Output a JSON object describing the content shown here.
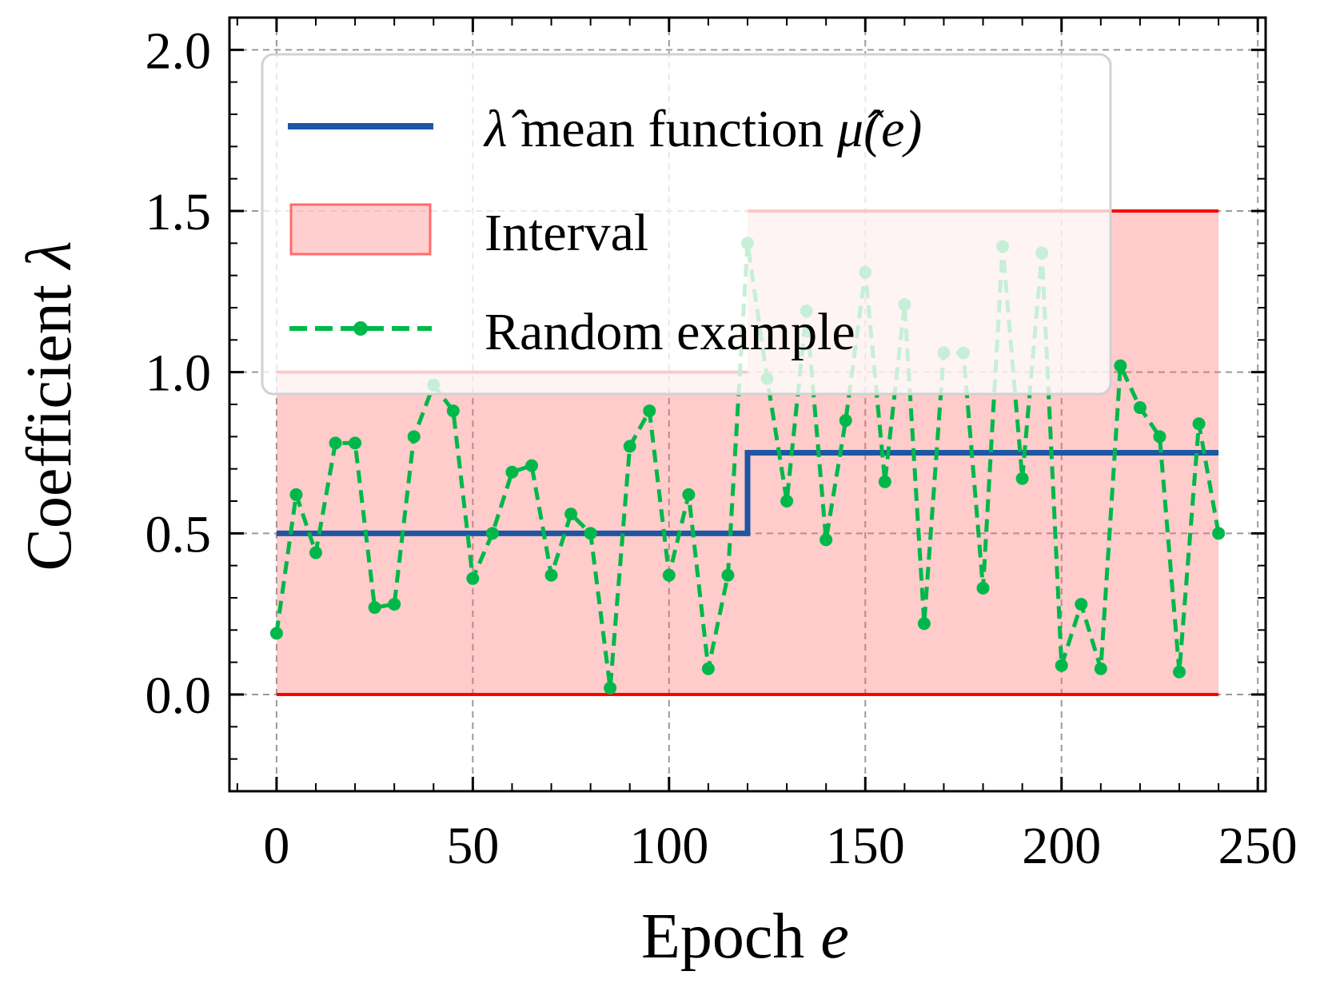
{
  "chart_data": {
    "type": "line",
    "xlabel": "Epoch",
    "xlabel_var": "e",
    "ylabel": "Coefficient",
    "ylabel_var": "λ",
    "xlim": [
      -12,
      252
    ],
    "ylim": [
      -0.3,
      2.1
    ],
    "xticks": [
      0,
      50,
      100,
      150,
      200,
      250
    ],
    "xtick_labels": [
      "0",
      "50",
      "100",
      "150",
      "200",
      "250"
    ],
    "yticks": [
      0.0,
      0.5,
      1.0,
      1.5,
      2.0
    ],
    "ytick_labels": [
      "0.0",
      "0.5",
      "1.0",
      "1.5",
      "2.0"
    ],
    "grid": true,
    "legend_position": "top-center",
    "colors": {
      "mean": "#1f56a3",
      "interval_fill": "#ff6b6b",
      "interval_edge": "#ff0000",
      "random": "#00b84a"
    },
    "series": [
      {
        "name": "mean",
        "legend_label": "mean function",
        "legend_prefix_symbol": "λ̂",
        "legend_suffix": "μ̂(e)",
        "style": "step",
        "x": [
          0,
          120,
          120,
          240
        ],
        "y": [
          0.5,
          0.5,
          0.75,
          0.75
        ]
      },
      {
        "name": "interval",
        "legend_label": "Interval",
        "style": "fill",
        "segments": [
          {
            "x_start": 0,
            "x_end": 120,
            "lower": 0.0,
            "upper": 1.0
          },
          {
            "x_start": 120,
            "x_end": 240,
            "lower": 0.0,
            "upper": 1.5
          }
        ]
      },
      {
        "name": "random",
        "legend_label": "Random example",
        "style": "dashed-marker",
        "x": [
          0,
          5,
          10,
          15,
          20,
          25,
          30,
          35,
          40,
          45,
          50,
          55,
          60,
          65,
          70,
          75,
          80,
          85,
          90,
          95,
          100,
          105,
          110,
          115,
          120,
          125,
          130,
          135,
          140,
          145,
          150,
          155,
          160,
          165,
          170,
          175,
          180,
          185,
          190,
          195,
          200,
          205,
          210,
          215,
          220,
          225,
          230,
          235,
          240
        ],
        "y": [
          0.19,
          0.62,
          0.44,
          0.78,
          0.78,
          0.27,
          0.28,
          0.8,
          0.96,
          0.88,
          0.36,
          0.5,
          0.69,
          0.71,
          0.37,
          0.56,
          0.5,
          0.02,
          0.77,
          0.88,
          0.37,
          0.62,
          0.08,
          0.37,
          1.4,
          0.98,
          0.6,
          1.19,
          0.48,
          0.85,
          1.31,
          0.66,
          1.21,
          0.22,
          1.06,
          1.06,
          0.33,
          1.39,
          0.67,
          1.37,
          0.09,
          0.28,
          0.08,
          1.02,
          0.89,
          0.8,
          0.07,
          0.84,
          0.5
        ]
      }
    ]
  }
}
